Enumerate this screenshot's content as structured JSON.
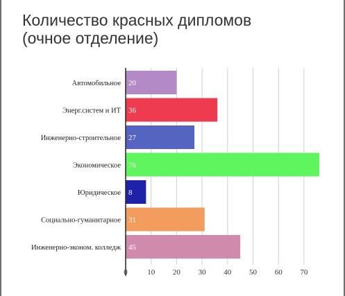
{
  "chart_data": {
    "type": "bar",
    "orientation": "horizontal",
    "title": [
      "Количество красных дипломов",
      "(очное отделение)"
    ],
    "categories": [
      "Автомобильное",
      "Энерг.систем и ИТ",
      "Инженерно-строительное",
      "Экономическое",
      "Юридическое",
      "Социально-гуманитарное",
      "Инженерно-эконом. колледж"
    ],
    "values": [
      20,
      36,
      27,
      76,
      8,
      31,
      45
    ],
    "colors": [
      "#b38ac6",
      "#ee3b4f",
      "#5563c1",
      "#5ff55e",
      "#1f22a8",
      "#f29c5d",
      "#cf8aac"
    ],
    "data_labels": [
      "20",
      "36",
      "27",
      "76",
      "8",
      "31",
      "45"
    ],
    "xticks": [
      0,
      10,
      20,
      30,
      40,
      50,
      60,
      70
    ],
    "xlim": [
      0,
      76
    ],
    "grid": true,
    "legend": "none"
  }
}
